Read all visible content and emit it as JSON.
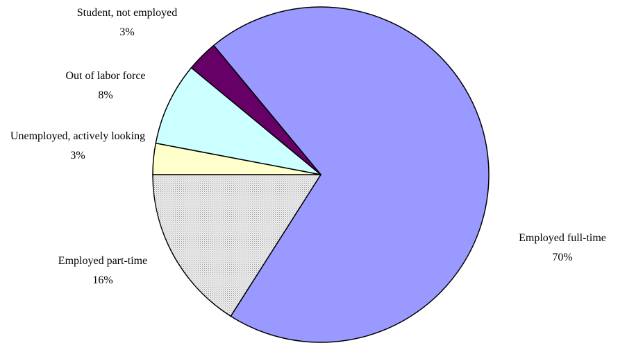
{
  "chart_data": {
    "type": "pie",
    "categories": [
      "Employed full-time",
      "Employed part-time",
      "Unemployed, actively looking",
      "Out of labor force",
      "Student, not employed"
    ],
    "values": [
      70,
      16,
      3,
      8,
      3
    ],
    "value_labels": [
      "70%",
      "16%",
      "3%",
      "8%",
      "3%"
    ],
    "colors": [
      "#9999ff",
      "#dcdcdc",
      "#ffffcc",
      "#ccffff",
      "#660066"
    ]
  }
}
